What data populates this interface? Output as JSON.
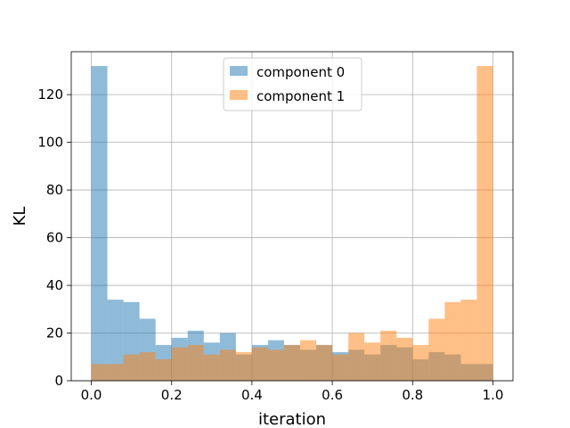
{
  "chart_data": {
    "type": "bar",
    "subtype": "histogram-overlay",
    "title": "",
    "xlabel": "iteration",
    "ylabel": "KL",
    "xlim": [
      -0.05,
      1.05
    ],
    "ylim": [
      0,
      138
    ],
    "grid": true,
    "legend_position": "top-center",
    "bin_edges": [
      0.0,
      0.04,
      0.08,
      0.12,
      0.16,
      0.2,
      0.24,
      0.28,
      0.32,
      0.36,
      0.4,
      0.44,
      0.48,
      0.52,
      0.56,
      0.6,
      0.64,
      0.68,
      0.72,
      0.76,
      0.8,
      0.84,
      0.88,
      0.92,
      0.96,
      1.0
    ],
    "xticks": [
      0.0,
      0.2,
      0.4,
      0.6,
      0.8,
      1.0
    ],
    "xtick_labels": [
      "0.0",
      "0.2",
      "0.4",
      "0.6",
      "0.8",
      "1.0"
    ],
    "yticks": [
      0,
      20,
      40,
      60,
      80,
      100,
      120
    ],
    "ytick_labels": [
      "0",
      "20",
      "40",
      "60",
      "80",
      "100",
      "120"
    ],
    "series": [
      {
        "name": "component 0",
        "color": "#1f77b4",
        "alpha": 0.5,
        "values": [
          132,
          34,
          33,
          26,
          15,
          18,
          21,
          16,
          20,
          11,
          15,
          17,
          15,
          13,
          15,
          12,
          13,
          11,
          15,
          14,
          9,
          12,
          11,
          7,
          7
        ]
      },
      {
        "name": "component 1",
        "color": "#ff7f0e",
        "alpha": 0.5,
        "values": [
          7,
          7,
          11,
          12,
          9,
          14,
          15,
          11,
          13,
          12,
          14,
          13,
          15,
          17,
          15,
          11,
          20,
          16,
          21,
          18,
          15,
          26,
          33,
          34,
          132
        ]
      }
    ]
  }
}
